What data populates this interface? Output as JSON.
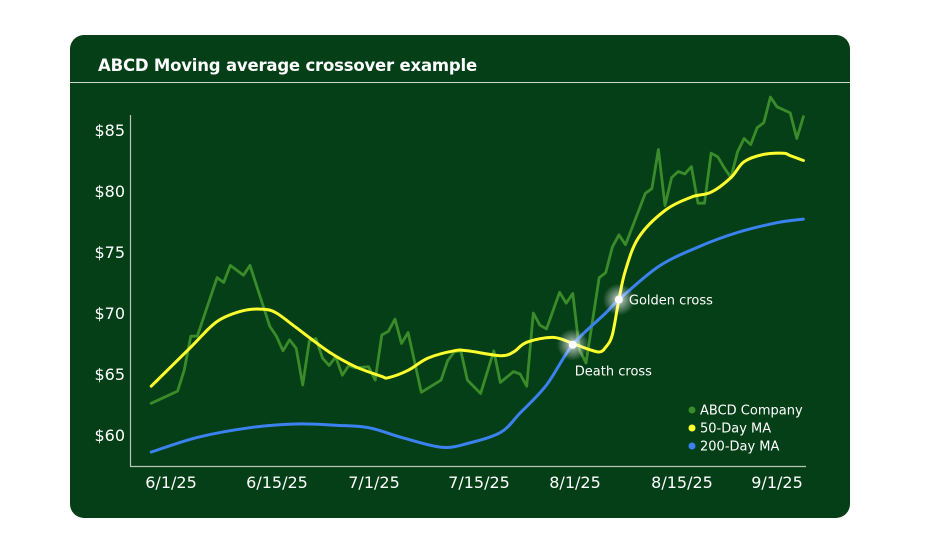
{
  "chart_data": {
    "type": "line",
    "title": "ABCD Moving average crossover example",
    "xlabel": "",
    "ylabel": "",
    "ylim": [
      58,
      88
    ],
    "y_ticks": [
      "$60",
      "$65",
      "$70",
      "$75",
      "$80",
      "$85"
    ],
    "y_tick_values": [
      60,
      65,
      70,
      75,
      80,
      85
    ],
    "x_ticks": [
      "6/1/25",
      "6/15/25",
      "7/1/25",
      "7/15/25",
      "8/1/25",
      "8/15/25",
      "9/1/25"
    ],
    "grid": false,
    "legend_position": "bottom-right",
    "series": [
      {
        "name": "ABCD Company",
        "color": "#3a8c2a",
        "points": [
          [
            "2025-05-29",
            62.6
          ],
          [
            "2025-06-02",
            63.6
          ],
          [
            "2025-06-03",
            65.3
          ],
          [
            "2025-06-04",
            68.1
          ],
          [
            "2025-06-05",
            68.1
          ],
          [
            "2025-06-08",
            72.9
          ],
          [
            "2025-06-09",
            72.5
          ],
          [
            "2025-06-10",
            73.9
          ],
          [
            "2025-06-12",
            73.1
          ],
          [
            "2025-06-13",
            73.9
          ],
          [
            "2025-06-16",
            68.9
          ],
          [
            "2025-06-17",
            68.1
          ],
          [
            "2025-06-18",
            66.9
          ],
          [
            "2025-06-19",
            67.8
          ],
          [
            "2025-06-20",
            67.1
          ],
          [
            "2025-06-21",
            64.1
          ],
          [
            "2025-06-22",
            67.7
          ],
          [
            "2025-06-23",
            67.9
          ],
          [
            "2025-06-24",
            66.3
          ],
          [
            "2025-06-25",
            65.7
          ],
          [
            "2025-06-26",
            66.4
          ],
          [
            "2025-06-27",
            64.9
          ],
          [
            "2025-06-28",
            65.7
          ],
          [
            "2025-06-29",
            65.5
          ],
          [
            "2025-07-01",
            65.6
          ],
          [
            "2025-07-02",
            64.5
          ],
          [
            "2025-07-03",
            68.2
          ],
          [
            "2025-07-04",
            68.5
          ],
          [
            "2025-07-05",
            69.5
          ],
          [
            "2025-07-06",
            67.5
          ],
          [
            "2025-07-07",
            68.4
          ],
          [
            "2025-07-09",
            63.5
          ],
          [
            "2025-07-12",
            64.5
          ],
          [
            "2025-07-13",
            66.1
          ],
          [
            "2025-07-14",
            66.8
          ],
          [
            "2025-07-15",
            66.9
          ],
          [
            "2025-07-16",
            64.5
          ],
          [
            "2025-07-18",
            63.4
          ],
          [
            "2025-07-20",
            66.9
          ],
          [
            "2025-07-21",
            64.3
          ],
          [
            "2025-07-23",
            65.2
          ],
          [
            "2025-07-24",
            65.0
          ],
          [
            "2025-07-25",
            64.0
          ],
          [
            "2025-07-26",
            70.0
          ],
          [
            "2025-07-27",
            69.0
          ],
          [
            "2025-07-28",
            68.7
          ],
          [
            "2025-07-30",
            71.7
          ],
          [
            "2025-07-31",
            70.8
          ],
          [
            "2025-08-01",
            71.6
          ],
          [
            "2025-08-02",
            67.0
          ],
          [
            "2025-08-03",
            65.9
          ],
          [
            "2025-08-05",
            72.9
          ],
          [
            "2025-08-06",
            73.3
          ],
          [
            "2025-08-07",
            75.4
          ],
          [
            "2025-08-08",
            76.4
          ],
          [
            "2025-08-09",
            75.6
          ],
          [
            "2025-08-12",
            79.8
          ],
          [
            "2025-08-13",
            80.2
          ],
          [
            "2025-08-14",
            83.4
          ],
          [
            "2025-08-15",
            78.8
          ],
          [
            "2025-08-16",
            81.1
          ],
          [
            "2025-08-17",
            81.6
          ],
          [
            "2025-08-18",
            81.4
          ],
          [
            "2025-08-19",
            82.0
          ],
          [
            "2025-08-20",
            79.0
          ],
          [
            "2025-08-21",
            79.0
          ],
          [
            "2025-08-22",
            83.1
          ],
          [
            "2025-08-23",
            82.8
          ],
          [
            "2025-08-24",
            81.9
          ],
          [
            "2025-08-25",
            81.1
          ],
          [
            "2025-08-26",
            83.2
          ],
          [
            "2025-08-27",
            84.3
          ],
          [
            "2025-08-28",
            83.8
          ],
          [
            "2025-08-29",
            85.2
          ],
          [
            "2025-08-30",
            85.6
          ],
          [
            "2025-08-31",
            87.7
          ],
          [
            "2025-09-01",
            86.9
          ],
          [
            "2025-09-03",
            86.4
          ],
          [
            "2025-09-04",
            84.3
          ],
          [
            "2025-09-05",
            86.1
          ]
        ]
      },
      {
        "name": "50-Day MA",
        "color": "#ffff2e",
        "points": [
          [
            "2025-05-29",
            64.0
          ],
          [
            "2025-06-04",
            67.2
          ],
          [
            "2025-06-08",
            69.3
          ],
          [
            "2025-06-12",
            70.2
          ],
          [
            "2025-06-15",
            70.3
          ],
          [
            "2025-06-17",
            70.0
          ],
          [
            "2025-06-20",
            68.8
          ],
          [
            "2025-06-25",
            66.8
          ],
          [
            "2025-06-29",
            65.6
          ],
          [
            "2025-07-03",
            64.8
          ],
          [
            "2025-07-04",
            64.7
          ],
          [
            "2025-07-07",
            65.3
          ],
          [
            "2025-07-10",
            66.3
          ],
          [
            "2025-07-14",
            66.9
          ],
          [
            "2025-07-16",
            66.9
          ],
          [
            "2025-07-21",
            66.5
          ],
          [
            "2025-07-23",
            66.8
          ],
          [
            "2025-07-25",
            67.6
          ],
          [
            "2025-07-29",
            68.0
          ],
          [
            "2025-08-01",
            67.5
          ],
          [
            "2025-08-03",
            67.1
          ],
          [
            "2025-08-05",
            66.8
          ],
          [
            "2025-08-06",
            67.2
          ],
          [
            "2025-08-07",
            68.2
          ],
          [
            "2025-08-08",
            71.1
          ],
          [
            "2025-08-09",
            73.5
          ],
          [
            "2025-08-11",
            76.2
          ],
          [
            "2025-08-15",
            78.4
          ],
          [
            "2025-08-19",
            79.5
          ],
          [
            "2025-08-22",
            79.9
          ],
          [
            "2025-08-25",
            81.1
          ],
          [
            "2025-08-27",
            82.4
          ],
          [
            "2025-08-30",
            83.0
          ],
          [
            "2025-09-02",
            83.1
          ],
          [
            "2025-09-03",
            82.9
          ],
          [
            "2025-09-05",
            82.5
          ]
        ]
      },
      {
        "name": "200-Day MA",
        "color": "#3b82f0",
        "points": [
          [
            "2025-05-29",
            58.6
          ],
          [
            "2025-06-05",
            59.8
          ],
          [
            "2025-06-13",
            60.6
          ],
          [
            "2025-06-20",
            60.9
          ],
          [
            "2025-06-26",
            60.8
          ],
          [
            "2025-07-01",
            60.6
          ],
          [
            "2025-07-06",
            59.8
          ],
          [
            "2025-07-12",
            59.0
          ],
          [
            "2025-07-16",
            59.3
          ],
          [
            "2025-07-21",
            60.2
          ],
          [
            "2025-07-24",
            61.8
          ],
          [
            "2025-07-28",
            64.1
          ],
          [
            "2025-08-01",
            67.4
          ],
          [
            "2025-08-06",
            70.0
          ],
          [
            "2025-08-08",
            71.1
          ],
          [
            "2025-08-14",
            73.8
          ],
          [
            "2025-08-20",
            75.4
          ],
          [
            "2025-08-26",
            76.6
          ],
          [
            "2025-09-01",
            77.4
          ],
          [
            "2025-09-05",
            77.7
          ]
        ]
      }
    ],
    "annotations": [
      {
        "label": "Death cross",
        "date": "2025-08-01",
        "value": 67.4
      },
      {
        "label": "Golden cross",
        "date": "2025-08-08",
        "value": 71.1
      }
    ]
  }
}
